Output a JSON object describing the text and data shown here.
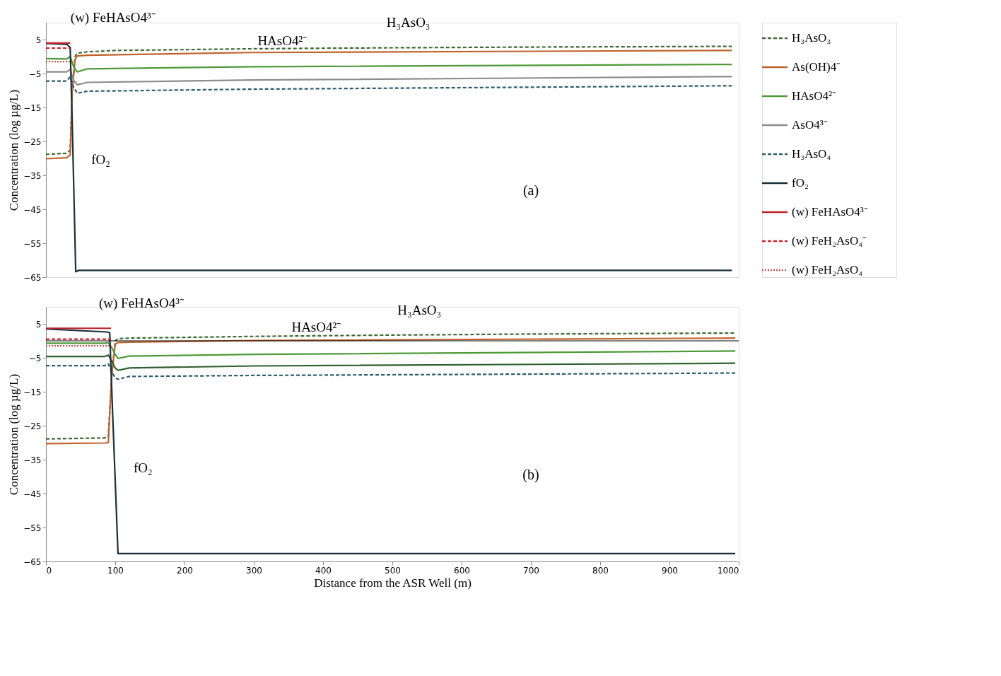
{
  "chart_data": [
    {
      "type": "line",
      "ylabel": "Concentration (log µg/L)",
      "xlim": [
        0,
        1000
      ],
      "ylim": [
        -65,
        10
      ],
      "yticks": [
        5,
        -5,
        -15,
        -25,
        -35,
        -45,
        -55,
        -65
      ],
      "tick_labels": "y",
      "grid": false,
      "legend": "right",
      "annotations": [
        {
          "text": "(w) FeHAsO4³⁻",
          "x": 10,
          "y": 4
        },
        {
          "text": "HAsO4²⁻",
          "x": 280,
          "y": -2.9
        },
        {
          "text": "H₃AsO₃",
          "x": 466,
          "y": 2.5
        },
        {
          "text": "fO₂",
          "x": 40,
          "y": -38
        },
        "(a)"
      ],
      "series": [
        {
          "name": "H₃AsO₃",
          "color": "#3d6b35",
          "line_style": "dashed",
          "x": [
            0,
            30,
            35,
            38,
            42,
            45,
            60,
            100,
            300,
            500,
            700,
            990
          ],
          "values": [
            -28.8,
            -28.5,
            -27.5,
            -10,
            0,
            1.0,
            1.4,
            1.8,
            2.3,
            2.6,
            2.8,
            3.0
          ]
        },
        {
          "name": "As(OH)4⁻",
          "color": "#c0622a",
          "line_style": "solid",
          "x": [
            0,
            30,
            35,
            38,
            42,
            45,
            60,
            300,
            990
          ],
          "values": [
            -30.1,
            -29.8,
            -29,
            -10,
            -1,
            0.2,
            0.4,
            1.2,
            1.8
          ]
        },
        {
          "name": "HAsO4²⁻",
          "color": "#4e9a3a",
          "line_style": "solid",
          "x": [
            0,
            30,
            35,
            40,
            45,
            60,
            300,
            990
          ],
          "values": [
            -0.6,
            -0.7,
            0,
            -3,
            -4.5,
            -3.6,
            -3.0,
            -2.3
          ]
        },
        {
          "name": "AsO4³⁻",
          "color": "#8c8c8c",
          "line_style": "solid",
          "x": [
            0,
            30,
            35,
            40,
            45,
            60,
            300,
            990
          ],
          "values": [
            -4.5,
            -4.5,
            -3.8,
            -7,
            -8.3,
            -7.6,
            -6.9,
            -5.9
          ]
        },
        {
          "name": "H₃AsO₄",
          "color": "#2d5c6e",
          "line_style": "dashed",
          "x": [
            0,
            30,
            35,
            40,
            45,
            60,
            300,
            990
          ],
          "values": [
            -7.2,
            -7.2,
            -6,
            -9,
            -10.8,
            -10.2,
            -9.6,
            -8.6
          ]
        },
        {
          "name": "fO₂",
          "color": "#1c2e3c",
          "line_style": "solid",
          "x": [
            0,
            30,
            35,
            38,
            43,
            47,
            990
          ],
          "values": [
            3.9,
            3.6,
            2.7,
            -20,
            -63.4,
            -63,
            -63
          ]
        },
        {
          "name": "(w) FeHAsO4³⁻",
          "color": "#c0202a",
          "line_style": "solid",
          "x": [
            0,
            35
          ],
          "values": [
            4.0,
            4.0
          ]
        },
        {
          "name": "(w) FeH₂AsO₄⁻",
          "color": "#d0202a",
          "line_style": "dashed",
          "x": [
            0,
            35
          ],
          "values": [
            2.5,
            2.5
          ]
        },
        {
          "name": "(w) FeH₂AsO₄",
          "color": "#d05050",
          "line_style": "dotted",
          "x": [
            0,
            35
          ],
          "values": [
            -1.5,
            -1.5
          ]
        }
      ]
    },
    {
      "type": "line",
      "xlabel": "Distance from the ASR Well (m)",
      "ylabel": "Concentration (log µg/L)",
      "xlim": [
        0,
        1000
      ],
      "xticks": [
        0,
        100,
        200,
        300,
        400,
        500,
        600,
        700,
        800,
        900,
        1000
      ],
      "ylim": [
        -65,
        10
      ],
      "yticks": [
        5,
        -5,
        -15,
        -25,
        -35,
        -45,
        -55,
        -65
      ],
      "grid": false,
      "ref_lines": [
        {
          "axis": "y",
          "value": 0,
          "color": "#000000"
        }
      ],
      "annotations": [
        {
          "text": "(w) FeHAsO4³⁻",
          "x": 51,
          "y": 3.6
        },
        {
          "text": "HAsO4²⁻",
          "x": 329,
          "y": -3.6
        },
        {
          "text": "H₃AsO₃",
          "x": 482,
          "y": 1.5
        },
        {
          "text": "fO₂",
          "x": 101,
          "y": -45
        },
        "(b)"
      ],
      "series": [
        {
          "color": "#3d6b35",
          "line_style": "dashed",
          "x": [
            0,
            85,
            90,
            95,
            100,
            104,
            120,
            300,
            500,
            700,
            995
          ],
          "values": [
            -28.9,
            -28.6,
            -28.3,
            -10,
            0,
            0.6,
            0.8,
            1.3,
            1.7,
            2.0,
            2.3
          ]
        },
        {
          "color": "#c0622a",
          "line_style": "solid",
          "x": [
            0,
            85,
            90,
            95,
            100,
            104,
            120,
            300,
            995
          ],
          "values": [
            -30.3,
            -30.1,
            -30,
            -10,
            -1,
            -0.5,
            -0.4,
            0.1,
            0.8
          ]
        },
        {
          "color": "#4e9a3a",
          "line_style": "solid",
          "x": [
            0,
            85,
            90,
            95,
            100,
            104,
            120,
            300,
            995
          ],
          "values": [
            -0.7,
            -0.7,
            -0.5,
            -2,
            -4,
            -5.2,
            -4.5,
            -4.0,
            -3.0
          ]
        },
        {
          "color": "#2f5e2f",
          "line_style": "solid",
          "x": [
            0,
            85,
            90,
            95,
            100,
            104,
            120,
            300,
            995
          ],
          "values": [
            -4.6,
            -4.6,
            -4.2,
            -6,
            -8,
            -8.7,
            -8.0,
            -7.4,
            -6.6
          ]
        },
        {
          "color": "#2d5c6e",
          "line_style": "dashed",
          "x": [
            0,
            85,
            90,
            95,
            100,
            104,
            120,
            300,
            995
          ],
          "values": [
            -7.3,
            -7.3,
            -6.8,
            -9,
            -11,
            -11.3,
            -10.5,
            -10.2,
            -9.5
          ]
        },
        {
          "color": "#1c2e3c",
          "line_style": "solid",
          "x": [
            0,
            88,
            92,
            96,
            104,
            108,
            995
          ],
          "values": [
            3.5,
            2.6,
            2.4,
            -20,
            -62.7,
            -62.7,
            -62.7
          ]
        },
        {
          "color": "#c0202a",
          "line_style": "solid",
          "x": [
            0,
            94
          ],
          "values": [
            3.7,
            3.7
          ]
        },
        {
          "color": "#d0202a",
          "line_style": "dashed",
          "x": [
            0,
            94
          ],
          "values": [
            0.5,
            0.5
          ]
        },
        {
          "color": "#d05050",
          "line_style": "dotted",
          "x": [
            0,
            94
          ],
          "values": [
            -1.5,
            -1.5
          ]
        }
      ]
    }
  ]
}
